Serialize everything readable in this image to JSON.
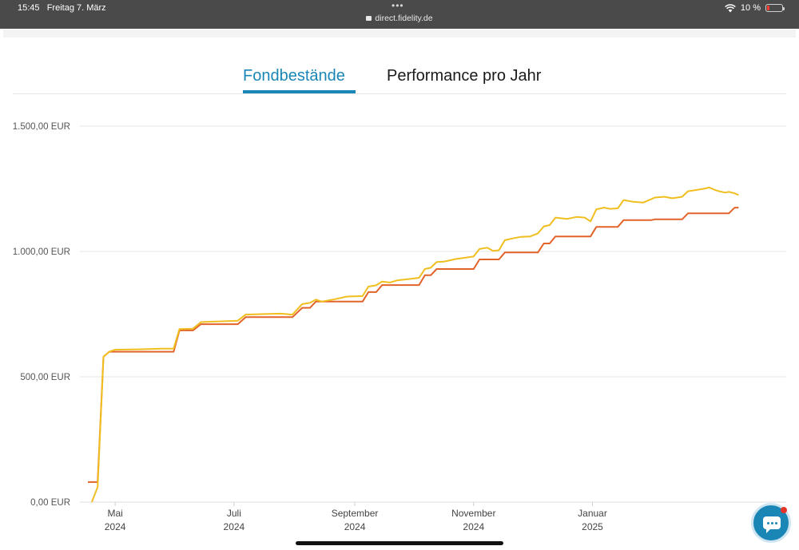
{
  "status_bar": {
    "time": "15:45",
    "date": "Freitag 7. März",
    "url": "direct.fidelity.de",
    "battery": "10 %",
    "wifi_icon": "wifi-icon",
    "battery_icon": "battery-low-icon",
    "lock_icon": "lock-icon"
  },
  "tabs": [
    {
      "label": "Fondbestände",
      "active": true
    },
    {
      "label": "Performance pro Jahr",
      "active": false
    }
  ],
  "colors": {
    "accent": "#1a86b5",
    "series_value": "#f0be1e",
    "series_invested": "#e2632a"
  },
  "chat_icon": "chat-bubble-icon",
  "chart_data": {
    "type": "line",
    "y_ticks": [
      "0,00 EUR",
      "500,00 EUR",
      "1.000,00 EUR",
      "1.500,00 EUR"
    ],
    "y_tick_values": [
      0,
      500,
      1000,
      1500
    ],
    "ylim": [
      0,
      1500
    ],
    "x_range": [
      "2024-04-17",
      "2025-03-07"
    ],
    "x_ticks": [
      {
        "date": "2024-05-01",
        "month": "Mai",
        "year": "2024"
      },
      {
        "date": "2024-07-01",
        "month": "Juli",
        "year": "2024"
      },
      {
        "date": "2024-09-01",
        "month": "September",
        "year": "2024"
      },
      {
        "date": "2024-11-01",
        "month": "November",
        "year": "2024"
      },
      {
        "date": "2025-01-01",
        "month": "Januar",
        "year": "2025"
      }
    ],
    "grid": true,
    "series": [
      {
        "key": "value",
        "color": "#f0be1e",
        "points": [
          [
            "2024-04-19",
            0
          ],
          [
            "2024-04-22",
            60
          ],
          [
            "2024-04-25",
            580
          ],
          [
            "2024-04-28",
            600
          ],
          [
            "2024-05-01",
            608
          ],
          [
            "2024-05-15",
            610
          ],
          [
            "2024-05-25",
            612
          ],
          [
            "2024-05-31",
            612
          ],
          [
            "2024-06-03",
            690
          ],
          [
            "2024-06-10",
            692
          ],
          [
            "2024-06-14",
            718
          ],
          [
            "2024-06-20",
            720
          ],
          [
            "2024-07-01",
            723
          ],
          [
            "2024-07-03",
            724
          ],
          [
            "2024-07-07",
            748
          ],
          [
            "2024-07-15",
            750
          ],
          [
            "2024-07-25",
            752
          ],
          [
            "2024-07-31",
            748
          ],
          [
            "2024-08-05",
            790
          ],
          [
            "2024-08-09",
            795
          ],
          [
            "2024-08-12",
            808
          ],
          [
            "2024-08-15",
            800
          ],
          [
            "2024-08-22",
            810
          ],
          [
            "2024-08-28",
            820
          ],
          [
            "2024-09-05",
            822
          ],
          [
            "2024-09-08",
            860
          ],
          [
            "2024-09-12",
            865
          ],
          [
            "2024-09-15",
            880
          ],
          [
            "2024-09-19",
            876
          ],
          [
            "2024-09-23",
            885
          ],
          [
            "2024-09-29",
            890
          ],
          [
            "2024-10-04",
            895
          ],
          [
            "2024-10-07",
            930
          ],
          [
            "2024-10-10",
            935
          ],
          [
            "2024-10-13",
            958
          ],
          [
            "2024-10-17",
            960
          ],
          [
            "2024-10-23",
            970
          ],
          [
            "2024-10-28",
            975
          ],
          [
            "2024-11-01",
            980
          ],
          [
            "2024-11-04",
            1010
          ],
          [
            "2024-11-08",
            1015
          ],
          [
            "2024-11-11",
            1002
          ],
          [
            "2024-11-14",
            1005
          ],
          [
            "2024-11-17",
            1045
          ],
          [
            "2024-11-21",
            1052
          ],
          [
            "2024-11-25",
            1058
          ],
          [
            "2024-11-30",
            1060
          ],
          [
            "2024-12-04",
            1072
          ],
          [
            "2024-12-07",
            1100
          ],
          [
            "2024-12-10",
            1105
          ],
          [
            "2024-12-13",
            1135
          ],
          [
            "2024-12-19",
            1130
          ],
          [
            "2024-12-24",
            1138
          ],
          [
            "2024-12-28",
            1135
          ],
          [
            "2024-12-31",
            1120
          ],
          [
            "2025-01-03",
            1168
          ],
          [
            "2025-01-07",
            1175
          ],
          [
            "2025-01-10",
            1170
          ],
          [
            "2025-01-14",
            1172
          ],
          [
            "2025-01-17",
            1205
          ],
          [
            "2025-01-22",
            1198
          ],
          [
            "2025-01-27",
            1195
          ],
          [
            "2025-01-31",
            1208
          ],
          [
            "2025-02-02",
            1215
          ],
          [
            "2025-02-07",
            1218
          ],
          [
            "2025-02-11",
            1212
          ],
          [
            "2025-02-16",
            1218
          ],
          [
            "2025-02-19",
            1240
          ],
          [
            "2025-02-23",
            1245
          ],
          [
            "2025-02-27",
            1250
          ],
          [
            "2025-03-02",
            1255
          ],
          [
            "2025-03-05",
            1245
          ],
          [
            "2025-03-07",
            1240
          ],
          [
            "2025-03-10",
            1235
          ],
          [
            "2025-03-12",
            1238
          ],
          [
            "2025-03-15",
            1232
          ],
          [
            "2025-03-17",
            1225
          ]
        ]
      },
      {
        "key": "invested",
        "color": "#e2632a",
        "points": [
          [
            "2024-04-17",
            80
          ],
          [
            "2024-04-22",
            80
          ],
          [
            "2024-04-25",
            580
          ],
          [
            "2024-04-28",
            600
          ],
          [
            "2024-05-31",
            600
          ],
          [
            "2024-06-03",
            685
          ],
          [
            "2024-06-10",
            685
          ],
          [
            "2024-06-14",
            710
          ],
          [
            "2024-07-03",
            710
          ],
          [
            "2024-07-07",
            738
          ],
          [
            "2024-07-31",
            738
          ],
          [
            "2024-08-05",
            775
          ],
          [
            "2024-08-09",
            775
          ],
          [
            "2024-08-12",
            800
          ],
          [
            "2024-09-05",
            800
          ],
          [
            "2024-09-08",
            838
          ],
          [
            "2024-09-12",
            838
          ],
          [
            "2024-09-15",
            866
          ],
          [
            "2024-10-04",
            866
          ],
          [
            "2024-10-07",
            905
          ],
          [
            "2024-10-10",
            905
          ],
          [
            "2024-10-13",
            930
          ],
          [
            "2024-11-01",
            930
          ],
          [
            "2024-11-04",
            968
          ],
          [
            "2024-11-14",
            968
          ],
          [
            "2024-11-17",
            996
          ],
          [
            "2024-12-04",
            996
          ],
          [
            "2024-12-07",
            1032
          ],
          [
            "2024-12-10",
            1032
          ],
          [
            "2024-12-13",
            1060
          ],
          [
            "2024-12-31",
            1060
          ],
          [
            "2025-01-03",
            1098
          ],
          [
            "2025-01-14",
            1098
          ],
          [
            "2025-01-17",
            1125
          ],
          [
            "2025-01-31",
            1125
          ],
          [
            "2025-02-02",
            1128
          ],
          [
            "2025-02-16",
            1128
          ],
          [
            "2025-02-19",
            1152
          ],
          [
            "2025-03-12",
            1152
          ],
          [
            "2025-03-15",
            1175
          ],
          [
            "2025-03-17",
            1175
          ]
        ]
      }
    ]
  }
}
